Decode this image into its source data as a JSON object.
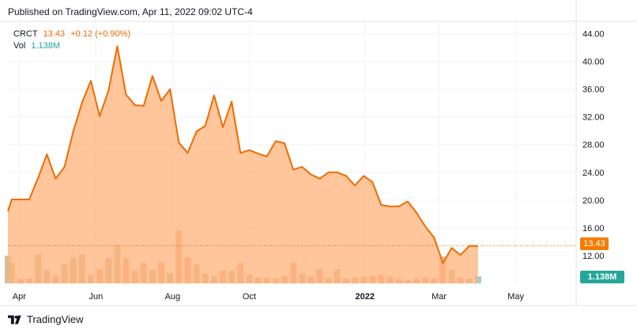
{
  "header": {
    "published": "Published on TradingView.com, Apr 11, 2022 09:02 UTC-4"
  },
  "legend": {
    "symbol": "CRCT",
    "price": "13.43",
    "change": "+0.12 (+0.90%)",
    "vol_label": "Vol",
    "vol_value": "1.138M"
  },
  "badges": {
    "price": "13.43",
    "volume": "1.138M"
  },
  "footer": {
    "brand": "TradingView"
  },
  "colors": {
    "line": "#ef6c00",
    "area": "#ffb27a",
    "vol_up": "#c9b48a",
    "vol_down": "#f7a27a",
    "vol_last": "#7fcfc6",
    "grid": "#f0f3fa"
  },
  "chart_data": {
    "type": "area",
    "title": "",
    "xlabel": "",
    "ylabel": "",
    "ylim": [
      8,
      46
    ],
    "y_ticks": [
      12,
      16,
      20,
      24,
      28,
      32,
      36,
      40,
      44
    ],
    "y_tick_labels": [
      "12.00",
      "16.00",
      "20.00",
      "24.00",
      "28.00",
      "32.00",
      "36.00",
      "40.00",
      "44.00"
    ],
    "x_tick_labels": [
      "Apr",
      "Jun",
      "Aug",
      "Oct",
      "2022",
      "Mar",
      "May"
    ],
    "x_tick_dates": [
      "2021-04-01",
      "2021-06-01",
      "2021-08-01",
      "2021-10-01",
      "2022-01-01",
      "2022-03-01",
      "2022-05-01"
    ],
    "x_range": [
      "2021-03-23",
      "2022-06-18"
    ],
    "last_price": 13.43,
    "series": [
      {
        "values": [
          [
            "2021-03-23",
            18.4
          ],
          [
            "2021-03-26",
            20.1
          ],
          [
            "2021-04-02",
            20.1
          ],
          [
            "2021-04-09",
            20.1
          ],
          [
            "2021-04-16",
            23.2
          ],
          [
            "2021-04-23",
            26.6
          ],
          [
            "2021-04-30",
            23.1
          ],
          [
            "2021-05-07",
            24.8
          ],
          [
            "2021-05-14",
            29.9
          ],
          [
            "2021-05-21",
            34.1
          ],
          [
            "2021-05-28",
            37.2
          ],
          [
            "2021-06-04",
            32.1
          ],
          [
            "2021-06-11",
            35.8
          ],
          [
            "2021-06-18",
            42.2
          ],
          [
            "2021-06-25",
            35.2
          ],
          [
            "2021-07-02",
            33.7
          ],
          [
            "2021-07-09",
            33.6
          ],
          [
            "2021-07-16",
            37.9
          ],
          [
            "2021-07-23",
            34.3
          ],
          [
            "2021-07-30",
            36.0
          ],
          [
            "2021-08-06",
            28.3
          ],
          [
            "2021-08-13",
            26.8
          ],
          [
            "2021-08-20",
            29.9
          ],
          [
            "2021-08-27",
            30.7
          ],
          [
            "2021-09-03",
            35.1
          ],
          [
            "2021-09-10",
            30.5
          ],
          [
            "2021-09-17",
            34.2
          ],
          [
            "2021-09-24",
            26.8
          ],
          [
            "2021-10-01",
            27.2
          ],
          [
            "2021-10-08",
            26.7
          ],
          [
            "2021-10-15",
            26.3
          ],
          [
            "2021-10-22",
            28.5
          ],
          [
            "2021-10-29",
            28.2
          ],
          [
            "2021-11-05",
            24.4
          ],
          [
            "2021-11-12",
            24.8
          ],
          [
            "2021-11-19",
            23.7
          ],
          [
            "2021-11-26",
            23.1
          ],
          [
            "2021-12-03",
            24.0
          ],
          [
            "2021-12-10",
            24.0
          ],
          [
            "2021-12-17",
            23.5
          ],
          [
            "2021-12-24",
            22.1
          ],
          [
            "2021-12-31",
            23.5
          ],
          [
            "2022-01-07",
            22.6
          ],
          [
            "2022-01-14",
            19.3
          ],
          [
            "2022-01-21",
            19.1
          ],
          [
            "2022-01-28",
            19.1
          ],
          [
            "2022-02-04",
            19.8
          ],
          [
            "2022-02-11",
            18.2
          ],
          [
            "2022-02-18",
            16.2
          ],
          [
            "2022-02-25",
            14.6
          ],
          [
            "2022-03-04",
            10.9
          ],
          [
            "2022-03-11",
            13.1
          ],
          [
            "2022-03-18",
            12.1
          ],
          [
            "2022-03-25",
            13.4
          ],
          [
            "2022-04-01",
            13.4
          ]
        ]
      }
    ],
    "volume": [
      {
        "d": "2021-03-23",
        "v": 4.6,
        "c": "up"
      },
      {
        "d": "2021-03-26",
        "v": 3.4,
        "c": "up"
      },
      {
        "d": "2021-04-02",
        "v": 0.7,
        "c": "down"
      },
      {
        "d": "2021-04-09",
        "v": 0.8,
        "c": "down"
      },
      {
        "d": "2021-04-16",
        "v": 4.8,
        "c": "up"
      },
      {
        "d": "2021-04-23",
        "v": 2.2,
        "c": "up"
      },
      {
        "d": "2021-04-30",
        "v": 1.3,
        "c": "down"
      },
      {
        "d": "2021-05-07",
        "v": 3.2,
        "c": "up"
      },
      {
        "d": "2021-05-14",
        "v": 4.3,
        "c": "up"
      },
      {
        "d": "2021-05-21",
        "v": 4.8,
        "c": "up"
      },
      {
        "d": "2021-05-28",
        "v": 1.4,
        "c": "up"
      },
      {
        "d": "2021-06-04",
        "v": 2.4,
        "c": "down"
      },
      {
        "d": "2021-06-11",
        "v": 4.2,
        "c": "up"
      },
      {
        "d": "2021-06-18",
        "v": 6.4,
        "c": "up"
      },
      {
        "d": "2021-06-25",
        "v": 4.2,
        "c": "down"
      },
      {
        "d": "2021-07-02",
        "v": 2.1,
        "c": "down"
      },
      {
        "d": "2021-07-09",
        "v": 3.4,
        "c": "down"
      },
      {
        "d": "2021-07-16",
        "v": 2.2,
        "c": "up"
      },
      {
        "d": "2021-07-23",
        "v": 3.5,
        "c": "down"
      },
      {
        "d": "2021-07-30",
        "v": 1.7,
        "c": "up"
      },
      {
        "d": "2021-08-06",
        "v": 8.8,
        "c": "down"
      },
      {
        "d": "2021-08-13",
        "v": 4.3,
        "c": "down"
      },
      {
        "d": "2021-08-20",
        "v": 3.2,
        "c": "up"
      },
      {
        "d": "2021-08-27",
        "v": 1.6,
        "c": "up"
      },
      {
        "d": "2021-09-03",
        "v": 1.2,
        "c": "up"
      },
      {
        "d": "2021-09-10",
        "v": 2.1,
        "c": "down"
      },
      {
        "d": "2021-09-17",
        "v": 2.1,
        "c": "up"
      },
      {
        "d": "2021-09-24",
        "v": 3.3,
        "c": "down"
      },
      {
        "d": "2021-10-01",
        "v": 1.5,
        "c": "up"
      },
      {
        "d": "2021-10-08",
        "v": 1.0,
        "c": "down"
      },
      {
        "d": "2021-10-15",
        "v": 0.9,
        "c": "down"
      },
      {
        "d": "2021-10-22",
        "v": 0.8,
        "c": "up"
      },
      {
        "d": "2021-10-29",
        "v": 1.3,
        "c": "down"
      },
      {
        "d": "2021-11-05",
        "v": 3.4,
        "c": "down"
      },
      {
        "d": "2021-11-12",
        "v": 1.6,
        "c": "up"
      },
      {
        "d": "2021-11-19",
        "v": 1.1,
        "c": "down"
      },
      {
        "d": "2021-11-26",
        "v": 2.4,
        "c": "down"
      },
      {
        "d": "2021-12-03",
        "v": 0.9,
        "c": "up"
      },
      {
        "d": "2021-12-10",
        "v": 2.3,
        "c": "up"
      },
      {
        "d": "2021-12-17",
        "v": 0.8,
        "c": "down"
      },
      {
        "d": "2021-12-24",
        "v": 1.0,
        "c": "down"
      },
      {
        "d": "2021-12-31",
        "v": 1.1,
        "c": "up"
      },
      {
        "d": "2022-01-07",
        "v": 1.3,
        "c": "down"
      },
      {
        "d": "2022-01-14",
        "v": 1.4,
        "c": "down"
      },
      {
        "d": "2022-01-21",
        "v": 1.1,
        "c": "up"
      },
      {
        "d": "2022-01-28",
        "v": 0.8,
        "c": "down"
      },
      {
        "d": "2022-02-04",
        "v": 0.6,
        "c": "up"
      },
      {
        "d": "2022-02-11",
        "v": 0.8,
        "c": "down"
      },
      {
        "d": "2022-02-18",
        "v": 1.0,
        "c": "down"
      },
      {
        "d": "2022-02-25",
        "v": 0.8,
        "c": "down"
      },
      {
        "d": "2022-03-04",
        "v": 4.4,
        "c": "down"
      },
      {
        "d": "2022-03-11",
        "v": 2.2,
        "c": "up"
      },
      {
        "d": "2022-03-18",
        "v": 1.0,
        "c": "down"
      },
      {
        "d": "2022-03-25",
        "v": 0.8,
        "c": "up"
      },
      {
        "d": "2022-04-01",
        "v": 1.138,
        "c": "last"
      }
    ],
    "grid": true,
    "legend_position": "top-left"
  }
}
